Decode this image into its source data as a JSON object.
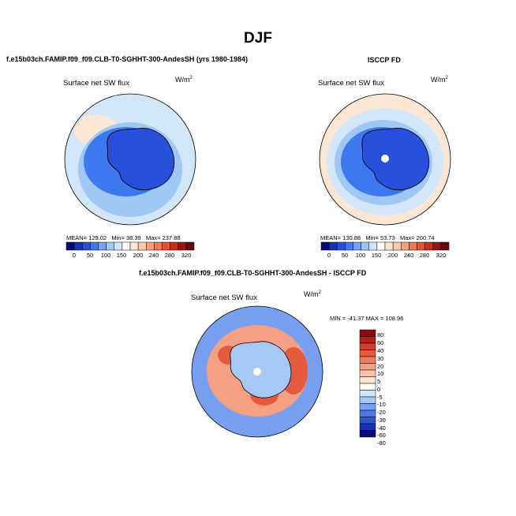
{
  "figure": {
    "title": "DJF",
    "top_left_heading": "f.e15b03ch.FAMIP.f09_f09.CLB-T0-SGHHT-300-AndesSH (yrs 1980-1984)",
    "top_right_heading": "ISCCP FD",
    "bottom_heading": "f.e15b03ch.FAMIP.f09_f09.CLB-T0-SGHHT-300-AndesSH - ISCCP FD"
  },
  "panels": [
    {
      "title": "Surface net SW flux",
      "units_base": "W/m",
      "units_exp": "2",
      "mean_label": "MEAN=",
      "mean": "129.02",
      "min_label": "Min=",
      "min": "38.39",
      "max_label": "Max=",
      "max": "237.88"
    },
    {
      "title": "Surface net SW flux",
      "units_base": "W/m",
      "units_exp": "2",
      "mean_label": "MEAN=",
      "mean": "130.88",
      "min_label": "Min=",
      "min": "53.73",
      "max_label": "Max=",
      "max": "200.74"
    },
    {
      "title": "Surface net SW flux",
      "units_base": "W/m",
      "units_exp": "2",
      "minmax_text": "MIN = -41.37  MAX = 108.96"
    }
  ],
  "colorbars": {
    "abs": {
      "labels": [
        "0",
        "50",
        "100",
        "150",
        "200",
        "240",
        "280",
        "320"
      ],
      "colors": [
        "#0a0a78",
        "#1432b4",
        "#2850dc",
        "#3c78f0",
        "#78a0f0",
        "#a0c8f5",
        "#d2e6fa",
        "#ffffff",
        "#fae6d2",
        "#fac8aa",
        "#f5a078",
        "#f07850",
        "#e6502d",
        "#c83214",
        "#961414",
        "#640a0a"
      ]
    },
    "diff": {
      "labels": [
        "80",
        "60",
        "40",
        "30",
        "20",
        "10",
        "5",
        "0",
        "-5",
        "-10",
        "-20",
        "-30",
        "-40",
        "-60",
        "-80"
      ],
      "colors": [
        "#8b0a0a",
        "#b41e14",
        "#d23c28",
        "#e65a3c",
        "#f07c5a",
        "#f5a082",
        "#fac3aa",
        "#fde6d2",
        "#ffffff",
        "#d2e6fa",
        "#a5c8f5",
        "#78a0f0",
        "#5078e6",
        "#2d55d2",
        "#1432b4",
        "#0a0a78"
      ]
    }
  },
  "map_colors": {
    "ocean_light": "#d2e6fa",
    "ocean_mid": "#a0c8f5",
    "coast_blue": "#3c78f0",
    "ice_blue": "#2850dc",
    "ice_deep": "#1e46d2",
    "warm_peach": "#fae6d2",
    "diff_red": "#e65a3c",
    "diff_orange": "#f5a082",
    "diff_blue": "#78a0f0",
    "diff_lightblue": "#a5c8f5",
    "diff_white": "#ffffff"
  }
}
